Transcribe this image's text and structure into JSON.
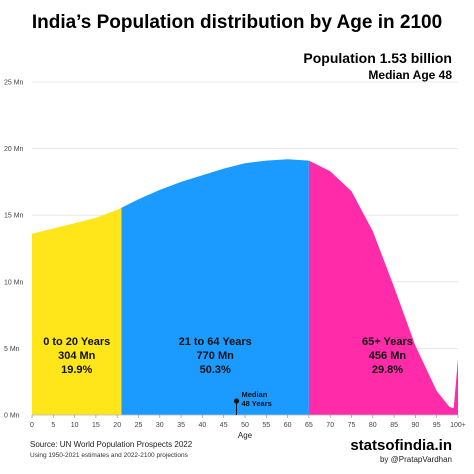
{
  "header": {
    "title": "India’s Population distribution by Age in 2100",
    "population": "Population 1.53 billion",
    "median": "Median Age 48"
  },
  "footer": {
    "source": "Source: UN World Population Prospects 2022",
    "note": "Using 1950-2021 estimates and 2022-2100 projections",
    "brand": "statsofindia.in",
    "handle": "by @PratapVardhan"
  },
  "chart_data": {
    "type": "area",
    "title": "India’s Population distribution by Age in 2100",
    "xlabel": "Age",
    "ylabel": "",
    "xlim": [
      0,
      100
    ],
    "ylim": [
      0,
      25
    ],
    "yticks": [
      0,
      5,
      10,
      15,
      20,
      25
    ],
    "ytick_labels": [
      "0 Mn",
      "5 Mn",
      "10 Mn",
      "15 Mn",
      "20 Mn",
      "25 Mn"
    ],
    "xticks": [
      0,
      5,
      10,
      15,
      20,
      25,
      30,
      35,
      40,
      45,
      50,
      55,
      60,
      65,
      70,
      75,
      80,
      85,
      90,
      95,
      100
    ],
    "xtick_labels": [
      "0",
      "5",
      "10",
      "15",
      "20",
      "25",
      "30",
      "35",
      "40",
      "45",
      "50",
      "55",
      "60",
      "65",
      "70",
      "75",
      "80",
      "85",
      "90",
      "95",
      "100+"
    ],
    "x": [
      0,
      5,
      10,
      15,
      20,
      25,
      30,
      35,
      40,
      45,
      50,
      55,
      60,
      65,
      70,
      75,
      80,
      85,
      90,
      95,
      98,
      99,
      100
    ],
    "y": [
      13.6,
      14.0,
      14.4,
      14.8,
      15.4,
      16.2,
      16.9,
      17.5,
      18.0,
      18.5,
      18.9,
      19.1,
      19.2,
      19.1,
      18.3,
      16.8,
      13.8,
      9.6,
      5.2,
      1.8,
      0.6,
      0.5,
      4.2
    ],
    "bands": [
      {
        "from": 0,
        "to": 21,
        "color": "#FEE61B",
        "label": "0 to 20 Years",
        "value": "304 Mn",
        "share": "19.9%"
      },
      {
        "from": 21,
        "to": 65,
        "color": "#1B9BFF",
        "label": "21 to 64 Years",
        "value": "770 Mn",
        "share": "50.3%"
      },
      {
        "from": 65,
        "to": 100,
        "color": "#FF2BA8",
        "label": "65+ Years",
        "value": "456 Mn",
        "share": "29.8%"
      }
    ],
    "median_marker": {
      "age": 48,
      "label_line1": "Median",
      "label_line2": "48 Years"
    },
    "grid": true
  }
}
